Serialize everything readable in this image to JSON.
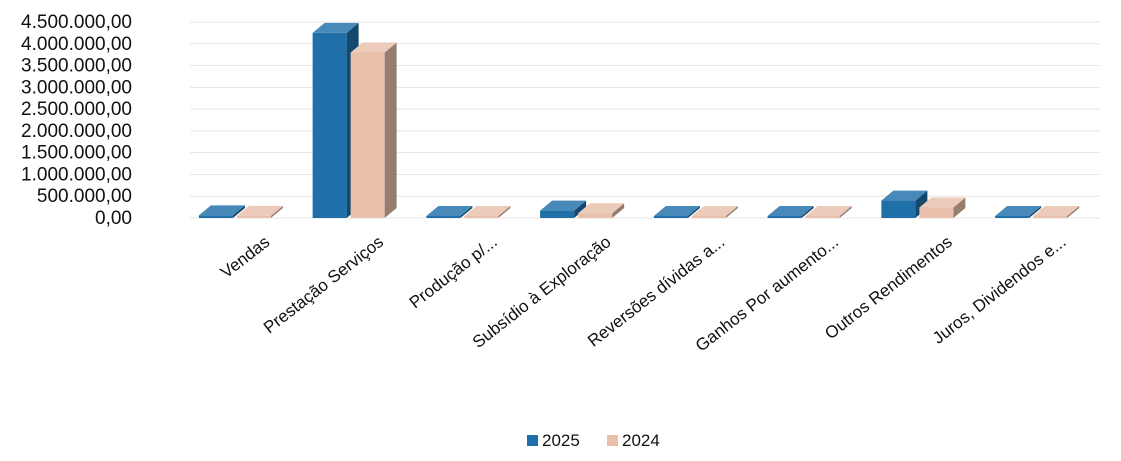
{
  "chart_data": {
    "type": "bar",
    "style": "3d-clustered-column",
    "categories": [
      "Vendas",
      "Prestação Serviços",
      "Produção p/...",
      "Subsídio à Exploração",
      "Reversões dívidas a...",
      "Ganhos Por aumento...",
      "Outros Rendimentos",
      "Juros, Dividendos e..."
    ],
    "series": [
      {
        "name": "2025",
        "color": "#1f6fa8",
        "values": [
          60000,
          4250000,
          20000,
          170000,
          20000,
          20000,
          400000,
          5000
        ]
      },
      {
        "name": "2024",
        "color": "#e9c0ac",
        "values": [
          50000,
          3800000,
          10000,
          110000,
          10000,
          10000,
          240000,
          5000
        ]
      }
    ],
    "ylim": [
      0,
      4500000
    ],
    "yticks": [
      {
        "value": 4500000,
        "label": "4.500.000,00"
      },
      {
        "value": 4000000,
        "label": "4.000.000,00"
      },
      {
        "value": 3500000,
        "label": "3.500.000,00"
      },
      {
        "value": 3000000,
        "label": "3.000.000,00"
      },
      {
        "value": 2500000,
        "label": "2.500.000,00"
      },
      {
        "value": 2000000,
        "label": "2.000.000,00"
      },
      {
        "value": 1500000,
        "label": "1.500.000,00"
      },
      {
        "value": 1000000,
        "label": "1.000.000,00"
      },
      {
        "value": 500000,
        "label": "500.000,00"
      },
      {
        "value": 0,
        "label": "0,00"
      }
    ],
    "grid": true,
    "legend_position": "bottom-center"
  }
}
